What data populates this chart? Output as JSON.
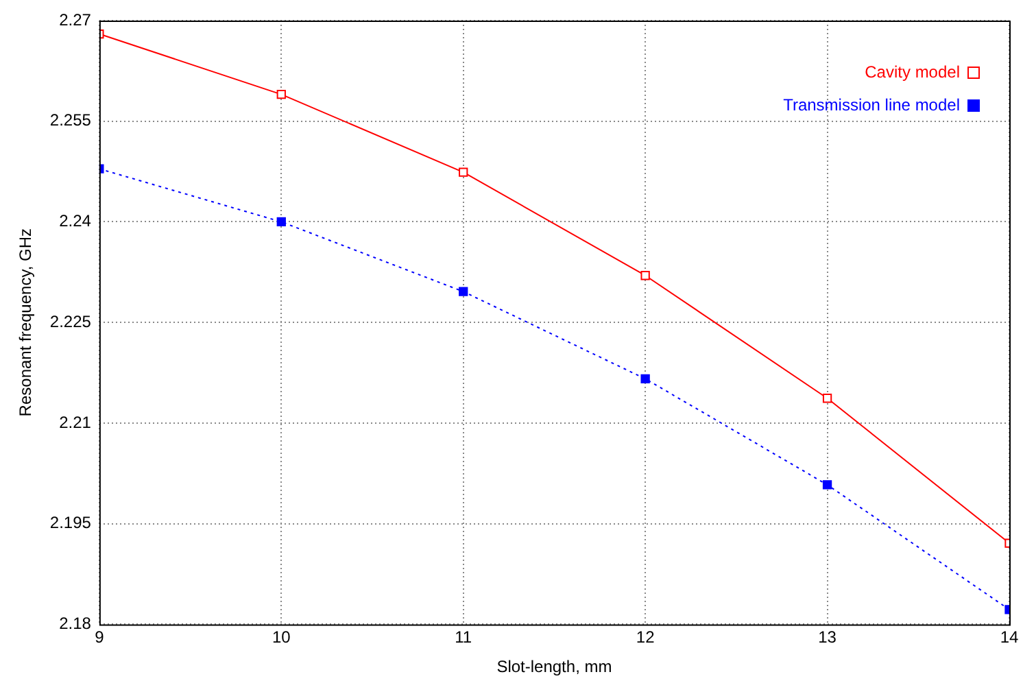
{
  "chart_data": {
    "type": "line",
    "xlabel": "Slot-length, mm",
    "ylabel": "Resonant frequency, GHz",
    "x": [
      9,
      10,
      11,
      12,
      13,
      14
    ],
    "series": [
      {
        "name": "Cavity model",
        "color": "#ff0000",
        "line_style": "solid",
        "values": [
          2.268,
          2.259,
          2.2474,
          2.232,
          2.2137,
          2.1921
        ]
      },
      {
        "name": "Transmission line model",
        "color": "#0000ff",
        "line_style": "dotted",
        "values": [
          2.2479,
          2.24,
          2.2296,
          2.2166,
          2.2008,
          2.1822
        ]
      }
    ],
    "xlim": [
      9,
      14
    ],
    "xticks": [
      9,
      10,
      11,
      12,
      13,
      14
    ],
    "ylim": [
      2.18,
      2.27
    ],
    "yticks": [
      2.18,
      2.195,
      2.21,
      2.225,
      2.24,
      2.255,
      2.27
    ],
    "grid": true,
    "legend": "top right",
    "marker": "square"
  }
}
